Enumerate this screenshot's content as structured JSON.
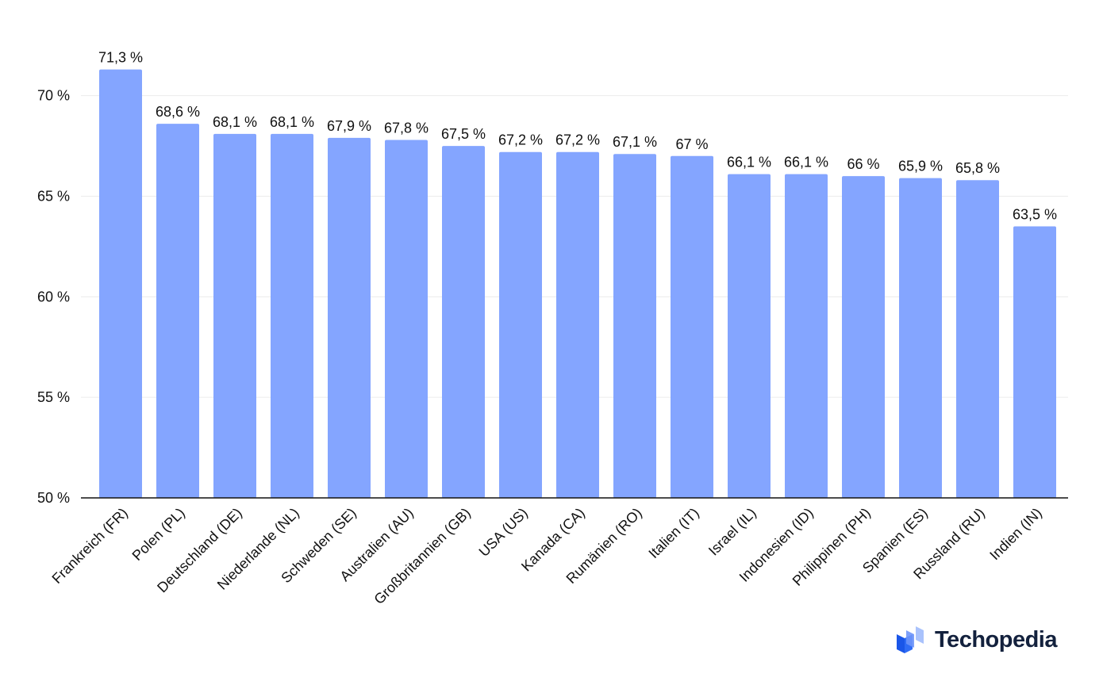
{
  "chart_data": {
    "type": "bar",
    "categories": [
      "Frankreich (FR)",
      "Polen (PL)",
      "Deutschland (DE)",
      "Niederlande (NL)",
      "Schweden (SE)",
      "Australien (AU)",
      "Großbritannien (GB)",
      "USA (US)",
      "Kanada (CA)",
      "Rumänien (RO)",
      "Italien (IT)",
      "Israel (IL)",
      "Indonesien (ID)",
      "Philippinen (PH)",
      "Spanien (ES)",
      "Russland (RU)",
      "Indien (IN)"
    ],
    "values": [
      71.3,
      68.6,
      68.1,
      68.1,
      67.9,
      67.8,
      67.5,
      67.2,
      67.2,
      67.1,
      67,
      66.1,
      66.1,
      66,
      65.9,
      65.8,
      63.5
    ],
    "data_labels": [
      "71,3 %",
      "68,6 %",
      "68,1 %",
      "68,1 %",
      "67,9 %",
      "67,8 %",
      "67,5 %",
      "67,2 %",
      "67,2 %",
      "67,1 %",
      "67 %",
      "66,1 %",
      "66,1 %",
      "66 %",
      "65,9 %",
      "65,8 %",
      "63,5 %"
    ],
    "y_ticks": [
      50,
      55,
      60,
      65,
      70
    ],
    "y_tick_labels": [
      "50 %",
      "55 %",
      "60 %",
      "65 %",
      "70 %"
    ],
    "ylim": [
      50,
      71.8
    ],
    "grid": true,
    "legend": "none",
    "bar_color": "#84a5ff"
  },
  "brand": {
    "name": "Techopedia",
    "icon": "techopedia-logo-icon"
  }
}
